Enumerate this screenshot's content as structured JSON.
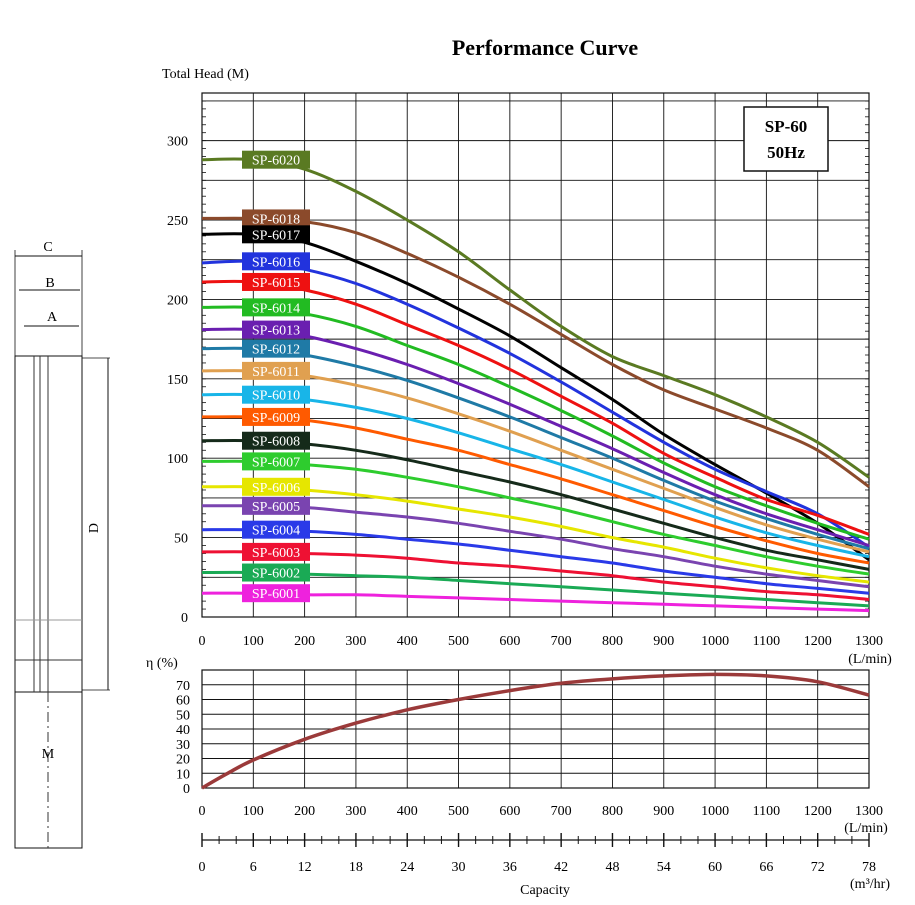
{
  "title": "Performance Curve",
  "box": {
    "line1": "SP-60",
    "line2": "50Hz"
  },
  "dimension_labels": {
    "c": "C",
    "b": "B",
    "a": "A",
    "d": "D",
    "m": "M"
  },
  "colors": {
    "grid": "#111111",
    "efficiency": "#9b3a3a"
  },
  "chart_data": [
    {
      "type": "line",
      "ylabel": "Total Head (M)",
      "xunit": "(L/min)",
      "xlim": [
        0,
        1300
      ],
      "ylim": [
        0,
        330
      ],
      "xticks": [
        0,
        100,
        200,
        300,
        400,
        500,
        600,
        700,
        800,
        900,
        1000,
        1100,
        1200,
        1300
      ],
      "yticks": [
        0,
        50,
        100,
        150,
        200,
        250,
        300
      ],
      "grid": true,
      "x": [
        0,
        100,
        200,
        300,
        400,
        500,
        600,
        700,
        800,
        900,
        1000,
        1100,
        1200,
        1300
      ],
      "series": [
        {
          "name": "SP-6020",
          "color": "#5a7a22",
          "values": [
            288,
            288,
            282,
            268,
            250,
            230,
            206,
            183,
            164,
            152,
            140,
            126,
            110,
            88
          ]
        },
        {
          "name": "SP-6018",
          "color": "#8b4a2b",
          "values": [
            251,
            251,
            249,
            242,
            229,
            214,
            197,
            178,
            159,
            143,
            131,
            119,
            105,
            82
          ]
        },
        {
          "name": "SP-6017",
          "color": "#000000",
          "values": [
            241,
            241,
            236,
            224,
            210,
            194,
            177,
            157,
            137,
            115,
            96,
            78,
            59,
            36
          ]
        },
        {
          "name": "SP-6016",
          "color": "#2233dd",
          "values": [
            223,
            224,
            219,
            210,
            197,
            182,
            166,
            148,
            129,
            110,
            93,
            79,
            65,
            44
          ]
        },
        {
          "name": "SP-6015",
          "color": "#ee1111",
          "values": [
            211,
            211,
            206,
            197,
            184,
            171,
            156,
            139,
            122,
            103,
            88,
            74,
            64,
            52
          ]
        },
        {
          "name": "SP-6014",
          "color": "#22bb22",
          "values": [
            195,
            195,
            191,
            183,
            171,
            159,
            145,
            130,
            114,
            97,
            82,
            70,
            59,
            49
          ]
        },
        {
          "name": "SP-6013",
          "color": "#6a1fb0",
          "values": [
            181,
            181,
            177,
            169,
            159,
            147,
            134,
            120,
            106,
            91,
            77,
            65,
            55,
            45
          ]
        },
        {
          "name": "SP-6012",
          "color": "#1f7aa6",
          "values": [
            169,
            169,
            165,
            158,
            149,
            138,
            126,
            113,
            100,
            86,
            73,
            62,
            52,
            43
          ]
        },
        {
          "name": "SP-6011",
          "color": "#e0a050",
          "values": [
            155,
            155,
            152,
            146,
            138,
            128,
            117,
            105,
            93,
            81,
            69,
            58,
            49,
            41
          ]
        },
        {
          "name": "SP-6010",
          "color": "#18b5e8",
          "values": [
            140,
            140,
            137,
            132,
            125,
            116,
            106,
            96,
            85,
            74,
            63,
            53,
            45,
            38
          ]
        },
        {
          "name": "SP-6009",
          "color": "#ff5a00",
          "values": [
            126,
            126,
            124,
            119,
            112,
            105,
            96,
            87,
            77,
            67,
            57,
            48,
            40,
            34
          ]
        },
        {
          "name": "SP-6008",
          "color": "#152a1a",
          "values": [
            111,
            111,
            109,
            105,
            99,
            92,
            85,
            77,
            68,
            59,
            50,
            42,
            36,
            30
          ]
        },
        {
          "name": "SP-6007",
          "color": "#2ecc2e",
          "values": [
            98,
            98,
            96,
            93,
            88,
            82,
            75,
            68,
            60,
            52,
            45,
            38,
            32,
            27
          ]
        },
        {
          "name": "SP-6006",
          "color": "#e6e600",
          "values": [
            82,
            82,
            80,
            77,
            73,
            68,
            63,
            57,
            50,
            44,
            37,
            31,
            26,
            22
          ]
        },
        {
          "name": "SP-6005",
          "color": "#7a44b0",
          "values": [
            70,
            70,
            69,
            66,
            63,
            59,
            54,
            49,
            43,
            38,
            32,
            27,
            23,
            19
          ]
        },
        {
          "name": "SP-6004",
          "color": "#2a3ae8",
          "values": [
            55,
            55,
            54,
            52,
            49,
            46,
            42,
            38,
            34,
            29,
            25,
            21,
            18,
            15
          ]
        },
        {
          "name": "SP-6003",
          "color": "#ee1133",
          "values": [
            41,
            41,
            40,
            39,
            37,
            34,
            32,
            29,
            26,
            22,
            19,
            16,
            14,
            11
          ]
        },
        {
          "name": "SP-6002",
          "color": "#1aaa55",
          "values": [
            28,
            28,
            27,
            26,
            25,
            23,
            21,
            19,
            17,
            15,
            13,
            11,
            9,
            7
          ]
        },
        {
          "name": "SP-6001",
          "color": "#ee22dd",
          "values": [
            15,
            15,
            14,
            14,
            13,
            12,
            11,
            10,
            9,
            8,
            7,
            6,
            5,
            4
          ]
        }
      ]
    },
    {
      "type": "line",
      "ylabel": "η (%)",
      "xunit": "(L/min)",
      "xlim": [
        0,
        1300
      ],
      "ylim": [
        0,
        80
      ],
      "xticks": [
        0,
        100,
        200,
        300,
        400,
        500,
        600,
        700,
        800,
        900,
        1000,
        1100,
        1200,
        1300
      ],
      "yticks": [
        0,
        10,
        20,
        30,
        40,
        50,
        60,
        70
      ],
      "grid": true,
      "series": [
        {
          "color": "#9b3a3a",
          "x": [
            0,
            50,
            100,
            200,
            300,
            400,
            500,
            600,
            700,
            800,
            900,
            1000,
            1100,
            1200,
            1300
          ],
          "values": [
            0,
            10,
            19,
            33,
            44,
            53,
            60,
            66,
            71,
            74,
            76,
            77,
            76,
            72,
            63
          ]
        }
      ]
    }
  ],
  "capacity_axis": {
    "label": "Capacity",
    "unit": "(m³/hr)",
    "ticks": [
      0,
      6,
      12,
      18,
      24,
      30,
      36,
      42,
      48,
      54,
      60,
      66,
      72,
      78
    ]
  }
}
